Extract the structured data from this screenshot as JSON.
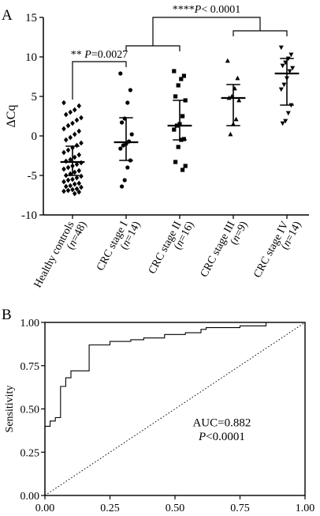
{
  "panels": {
    "a_letter": "A",
    "b_letter": "B"
  },
  "chart_data": [
    {
      "type": "scatter",
      "ylabel": "ΔCq",
      "ylim": [
        -10,
        15
      ],
      "yticks": [
        -10,
        -5,
        0,
        5,
        10,
        15
      ],
      "categories": [
        {
          "name": "Healthy controls",
          "n": "(n=48)",
          "mean": -3.3,
          "sd_low": -5.0,
          "sd_high": -1.3,
          "marker": "diamond"
        },
        {
          "name": "CRC stage I",
          "n": "(n=14)",
          "mean": -0.8,
          "sd_low": -3.1,
          "sd_high": 2.3,
          "marker": "circle"
        },
        {
          "name": "CRC stage II",
          "n": "(n=16)",
          "mean": 1.3,
          "sd_low": -0.5,
          "sd_high": 4.5,
          "marker": "square"
        },
        {
          "name": "CRC stage III",
          "n": "(n=9)",
          "mean": 4.8,
          "sd_low": 1.3,
          "sd_high": 6.5,
          "marker": "triangle-up"
        },
        {
          "name": "CRC stage IV",
          "n": "(n=14)",
          "mean": 7.9,
          "sd_low": 3.9,
          "sd_high": 9.8,
          "marker": "triangle-down"
        }
      ],
      "points": [
        [
          4.2,
          3.8,
          3.3,
          3.0,
          2.7,
          2.3,
          2.0,
          1.6,
          1.3,
          0.9,
          0.6,
          0.2,
          -0.2,
          -0.5,
          -0.9,
          -1.2,
          -1.5,
          -1.8,
          -2.1,
          -2.4,
          -2.7,
          -3.0,
          -3.2,
          -3.4,
          -3.6,
          -3.8,
          -4.0,
          -4.2,
          -4.4,
          -4.6,
          -4.8,
          -5.0,
          -5.1,
          -5.3,
          -5.5,
          -5.6,
          -5.8,
          -6.0,
          -6.1,
          -6.3,
          -6.4,
          -6.5,
          -6.7,
          -6.8,
          -6.9,
          -7.0,
          -7.1,
          -7.3
        ],
        [
          7.9,
          5.8,
          4.2,
          2.2,
          1.7,
          0.2,
          -0.7,
          -1.0,
          -1.2,
          -1.6,
          -3.1,
          -4.0,
          -5.6,
          -6.4
        ],
        [
          8.2,
          7.6,
          7.2,
          6.4,
          5.0,
          4.5,
          2.5,
          1.5,
          1.3,
          0.8,
          -0.4,
          -0.5,
          -1.4,
          -3.3,
          -3.8,
          -4.3
        ],
        [
          9.5,
          7.3,
          6.0,
          5.0,
          4.8,
          4.5,
          2.1,
          1.5,
          0.2
        ],
        [
          11.2,
          10.3,
          9.8,
          9.3,
          8.9,
          8.6,
          8.2,
          7.3,
          6.5,
          5.9,
          3.9,
          2.9,
          1.9,
          1.6
        ]
      ],
      "annotations": [
        {
          "stars": "**",
          "p_italic": "P",
          "text": "=0.0027"
        },
        {
          "stars": "****",
          "p_italic": "P",
          "text": "< 0.0001"
        }
      ]
    },
    {
      "type": "line",
      "title": "",
      "xlabel": "",
      "ylabel": "Sensitivity",
      "xlim": [
        0,
        1
      ],
      "ylim": [
        0,
        1
      ],
      "xticks": [
        "0.00",
        "0.25",
        "0.50",
        "0.75",
        "1.00"
      ],
      "yticks": [
        "0.00",
        "0.25",
        "0.50",
        "0.75",
        "1.00"
      ],
      "series": [
        {
          "x": [
            0,
            0,
            0.02,
            0.02,
            0.04,
            0.04,
            0.06,
            0.06,
            0.08,
            0.08,
            0.1,
            0.1,
            0.17,
            0.17,
            0.25,
            0.25,
            0.33,
            0.33,
            0.38,
            0.38,
            0.46,
            0.46,
            0.54,
            0.54,
            0.6,
            0.6,
            0.62,
            0.62,
            0.75,
            0.75,
            0.85,
            0.85,
            1.0
          ],
          "y": [
            0,
            0.4,
            0.4,
            0.43,
            0.43,
            0.45,
            0.45,
            0.63,
            0.63,
            0.68,
            0.68,
            0.72,
            0.72,
            0.87,
            0.87,
            0.89,
            0.89,
            0.9,
            0.9,
            0.91,
            0.91,
            0.93,
            0.93,
            0.94,
            0.94,
            0.96,
            0.96,
            0.97,
            0.97,
            0.98,
            0.98,
            1.0,
            1.0
          ]
        },
        {
          "x": [
            0,
            1
          ],
          "y": [
            0,
            1
          ],
          "style": "dotted"
        }
      ],
      "auc_text": "AUC=0.882",
      "p_italic": "P",
      "p_text": "<0.0001"
    }
  ]
}
